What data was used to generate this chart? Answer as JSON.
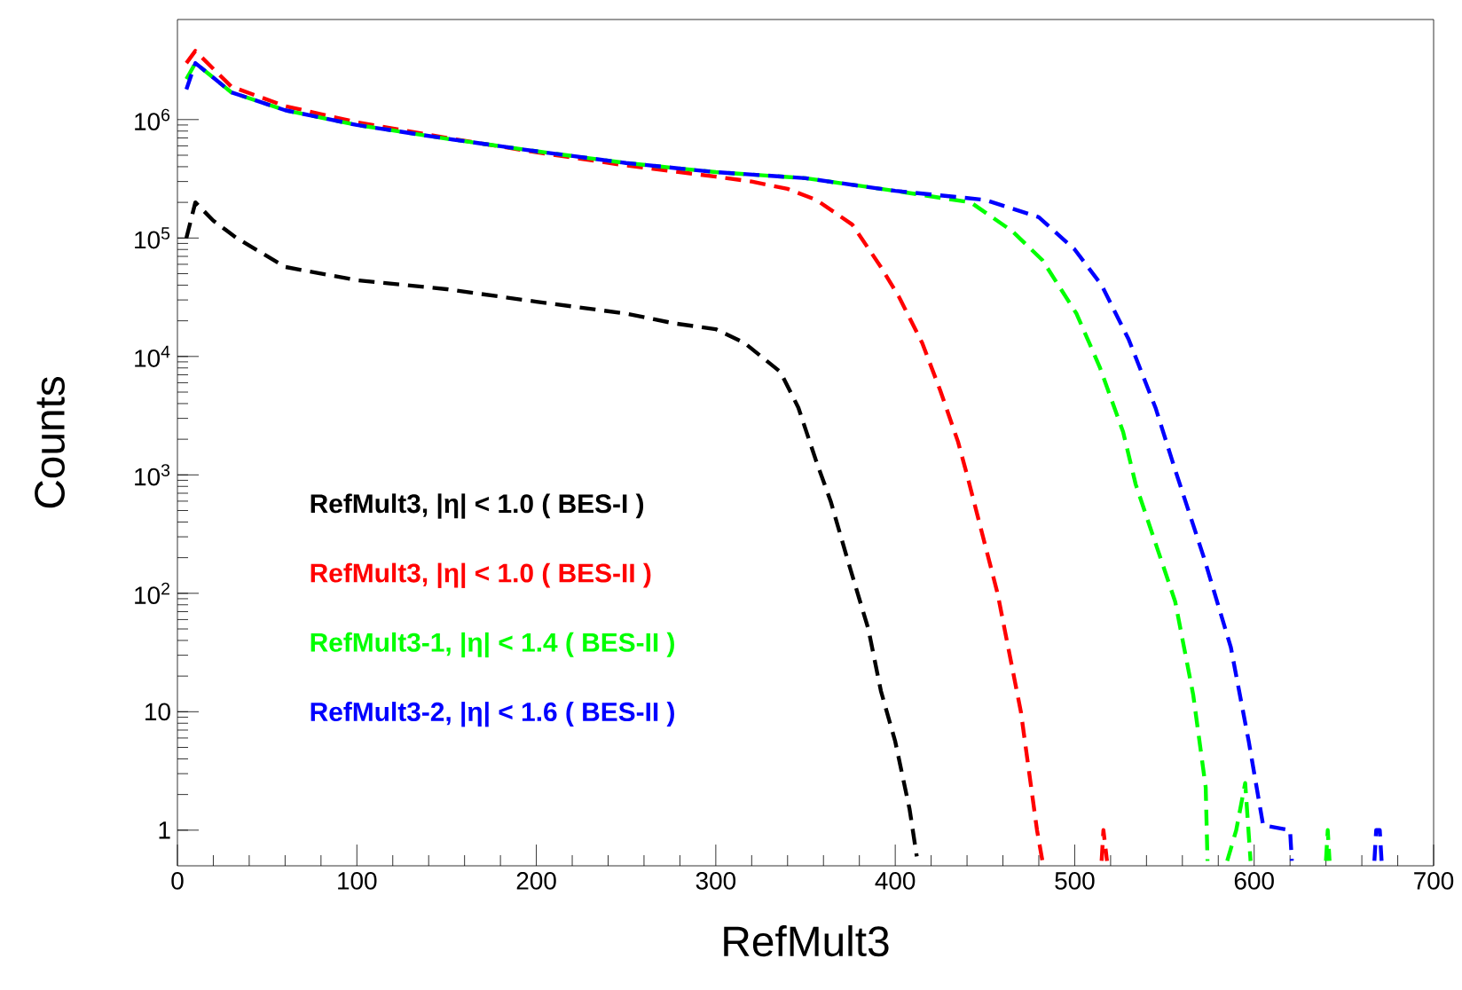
{
  "chart_data": {
    "type": "line",
    "xlabel": "RefMult3",
    "ylabel": "Counts",
    "log": "y",
    "xlim": [
      0,
      700
    ],
    "ylim": [
      0.5,
      7000000
    ],
    "xticks": [
      0,
      100,
      200,
      300,
      400,
      500,
      600,
      700
    ],
    "yticks": [
      1,
      10,
      {
        "value": 100,
        "label": "10$^{2}$"
      },
      {
        "value": 1000,
        "label": "10$^{3}$"
      },
      {
        "value": 10000,
        "label": "10$^{4}$"
      },
      {
        "value": 100000,
        "label": "10$^{5}$"
      },
      {
        "value": 1000000,
        "label": "10$^{6}$"
      }
    ],
    "grid": false,
    "legend": "bottom left",
    "line_style": "dashed",
    "marker": "none",
    "series": [
      {
        "name": "RefMult3, |η| < 1.0 ( BES-I )",
        "color": "#000000",
        "x": [
          5,
          10,
          20,
          33,
          60,
          100,
          150,
          200,
          250,
          277,
          300,
          316,
          336,
          346,
          356,
          364,
          374,
          385,
          392,
          400,
          408,
          412
        ],
        "values": [
          100000,
          200000,
          140000,
          100000,
          57000,
          44000,
          37000,
          29000,
          23000,
          19000,
          17000,
          13000,
          7400,
          3700,
          1300,
          600,
          180,
          50,
          15,
          5.6,
          1.5,
          0.6
        ]
      },
      {
        "name": "RefMult3, |η| < 1.0 ( BES-II )",
        "color": "#ff0000",
        "x": [
          5,
          10,
          30,
          60,
          100,
          150,
          200,
          250,
          300,
          320,
          340,
          356,
          376,
          392,
          402,
          415,
          425,
          435,
          440,
          457,
          470,
          479,
          482,
          500,
          515,
          516,
          518
        ],
        "values": [
          3000000,
          3800000,
          1900000,
          1300000,
          950000,
          700000,
          530000,
          410000,
          330000,
          300000,
          260000,
          210000,
          130000,
          57000,
          32000,
          13000,
          5200,
          1900,
          1000,
          100,
          10,
          1,
          0.55,
          null,
          0.55,
          1,
          0.55
        ]
      },
      {
        "name": "RefMult3-1, |η| < 1.4 ( BES-II )",
        "color": "#00ff00",
        "x": [
          5,
          10,
          30,
          60,
          100,
          150,
          200,
          250,
          300,
          350,
          400,
          442,
          465,
          482,
          501,
          514,
          527,
          534,
          556,
          566,
          573,
          574,
          580,
          585,
          590,
          595,
          598,
          620,
          640,
          641,
          642
        ],
        "values": [
          2200000,
          3000000,
          1700000,
          1200000,
          900000,
          690000,
          540000,
          430000,
          360000,
          320000,
          250000,
          200000,
          115000,
          65000,
          23000,
          8100,
          2300,
          830,
          85,
          14,
          2.3,
          0.55,
          null,
          0.55,
          1,
          2.5,
          0.55,
          null,
          0.55,
          1,
          0.55
        ]
      },
      {
        "name": "RefMult3-2, |η| < 1.6 ( BES-II )",
        "color": "#0000ff",
        "x": [
          5,
          10,
          30,
          60,
          100,
          150,
          200,
          250,
          300,
          350,
          400,
          450,
          480,
          500,
          515,
          530,
          545,
          556,
          572,
          587,
          597,
          605,
          620,
          621,
          640,
          667,
          668,
          670,
          671
        ],
        "values": [
          1800000,
          3000000,
          1700000,
          1200000,
          900000,
          690000,
          540000,
          430000,
          360000,
          320000,
          250000,
          210000,
          150000,
          80000,
          40000,
          14000,
          3700,
          1100,
          200,
          35,
          5.6,
          1.1,
          1,
          0.55,
          null,
          0.55,
          1,
          1,
          0.55
        ]
      }
    ]
  }
}
